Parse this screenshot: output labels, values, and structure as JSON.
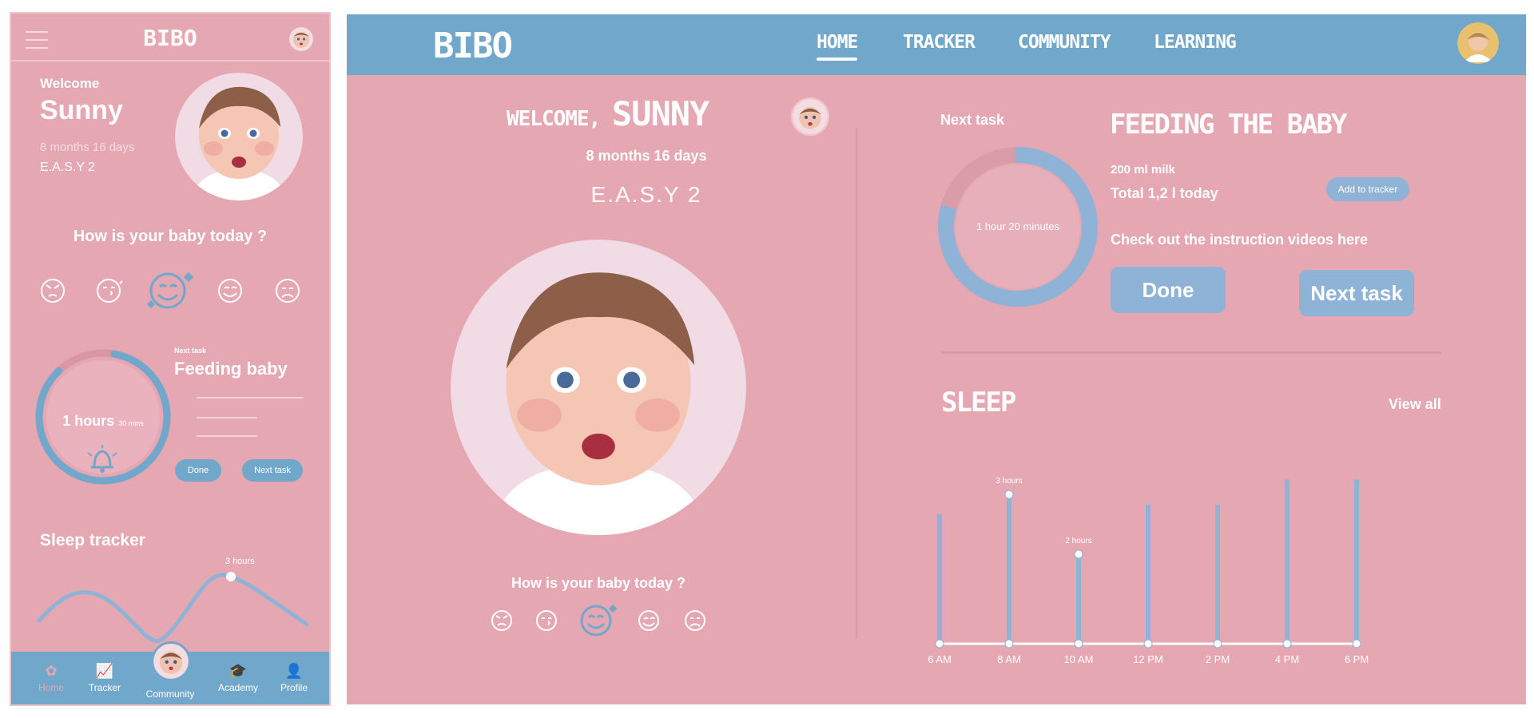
{
  "colors": {
    "pink": "#e5a7b2",
    "blue": "#72a7cc",
    "light_blue": "#8fb3d6",
    "white": "#ffffff"
  },
  "mobile": {
    "logo": "BIBO",
    "welcome": "Welcome",
    "name": "Sunny",
    "age": "8 months 16 days",
    "easy": "E.A.S.Y 2",
    "mood_question": "How is your baby today ?",
    "moods": [
      "angry-face-icon",
      "kissing-face-icon",
      "smiling-hearts-face-icon",
      "happy-face-icon",
      "sad-face-icon"
    ],
    "next_task_label": "Next task",
    "task_title": "Feeding baby",
    "timer_hours": "1 hours",
    "timer_mins": "30 mins",
    "timer_progress": 0.85,
    "done_label": "Done",
    "next_task_button": "Next task",
    "sleep_title": "Sleep tracker",
    "sleep_peak_label": "3 hours",
    "nav": [
      {
        "label": "Home",
        "icon": "home-icon",
        "active": true
      },
      {
        "label": "Tracker",
        "icon": "chart-icon",
        "active": false
      },
      {
        "label": "Community",
        "icon": "avatar-icon",
        "active": false
      },
      {
        "label": "Academy",
        "icon": "graduation-cap-icon",
        "active": false
      },
      {
        "label": "Profile",
        "icon": "person-icon",
        "active": false
      }
    ]
  },
  "desktop": {
    "logo": "BIBO",
    "nav": [
      {
        "label": "HOME",
        "active": true
      },
      {
        "label": "TRACKER",
        "active": false
      },
      {
        "label": "COMMUNITY",
        "active": false
      },
      {
        "label": "LEARNING",
        "active": false
      }
    ],
    "welcome_prefix": "WELCOME,",
    "name": "SUNNY",
    "age": "8 months 16 days",
    "easy": "E.A.S.Y 2",
    "mood_question": "How is your baby today ?",
    "next_task_label": "Next task",
    "ring_label": "1 hour 20 minutes",
    "ring_progress": 0.8,
    "task_title": "FEEDING THE BABY",
    "milk": "200 ml milk",
    "total": "Total 1,2 l today",
    "add_to_tracker": "Add to tracker",
    "instructions": "Check out the instruction videos here",
    "done_label": "Done",
    "next_task_button": "Next task",
    "sleep_title": "SLEEP",
    "view_all": "View all"
  },
  "chart_data": {
    "type": "bar",
    "title": "SLEEP",
    "categories": [
      "6 AM",
      "8 AM",
      "10 AM",
      "12 PM",
      "2 PM",
      "4 PM",
      "6 PM"
    ],
    "values": [
      2.6,
      3.0,
      1.8,
      2.8,
      2.8,
      3.3,
      3.3
    ],
    "data_labels": {
      "8 AM": "3 hours",
      "10 AM": "2 hours"
    },
    "ylim": [
      0,
      3.5
    ],
    "grid": false
  }
}
